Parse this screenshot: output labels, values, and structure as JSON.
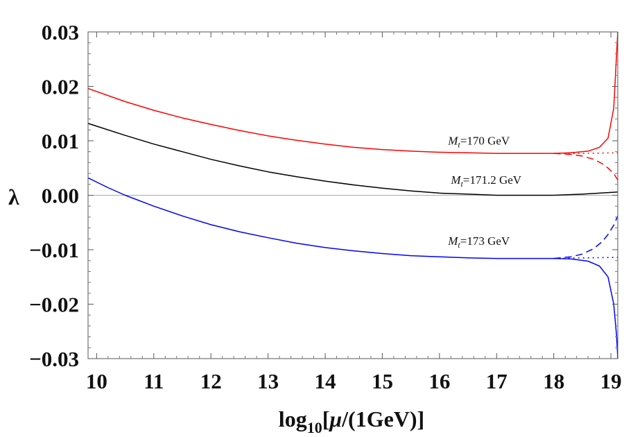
{
  "chart_data": {
    "type": "line",
    "title": "",
    "xlabel": {
      "prefix": "log",
      "sub": "10",
      "mu": "μ",
      "suffix": "/(1GeV)]"
    },
    "ylabel": "λ",
    "xlim": [
      9.85,
      19.12
    ],
    "ylim": [
      -0.03,
      0.03
    ],
    "x_ticks": [
      10,
      11,
      12,
      13,
      14,
      15,
      16,
      17,
      18,
      19
    ],
    "x_tick_labels": [
      "10",
      "11",
      "12",
      "13",
      "14",
      "15",
      "16",
      "17",
      "18",
      "19"
    ],
    "y_ticks": [
      0.03,
      0.02,
      0.01,
      0.0,
      -0.01,
      -0.02,
      -0.03
    ],
    "y_tick_labels": [
      "0.03",
      "0.02",
      "0.01",
      "0.00",
      "−0.01",
      "−0.02",
      "−0.03"
    ],
    "zero_line": true,
    "series": [
      {
        "name": "Mt=170 GeV",
        "color": "#ff0000",
        "style": "solid",
        "x": [
          9.85,
          10.5,
          11,
          11.5,
          12,
          12.5,
          13,
          13.5,
          14,
          14.5,
          15,
          15.5,
          16,
          16.5,
          17,
          17.5,
          18,
          18.3,
          18.6,
          18.8,
          18.95,
          19.05,
          19.12
        ],
        "values": [
          0.0196,
          0.0172,
          0.0156,
          0.0142,
          0.013,
          0.0119,
          0.0109,
          0.0101,
          0.0094,
          0.0088,
          0.0084,
          0.0081,
          0.0079,
          0.0078,
          0.0077,
          0.0077,
          0.0077,
          0.0078,
          0.0081,
          0.0088,
          0.0105,
          0.016,
          0.03
        ]
      },
      {
        "name": "Mt=170 GeV (dashed)",
        "color": "#ff0000",
        "style": "dashed",
        "x": [
          18.0,
          18.3,
          18.5,
          18.7,
          18.85,
          18.95,
          19.05,
          19.12
        ],
        "values": [
          0.0077,
          0.0075,
          0.0072,
          0.0066,
          0.0058,
          0.005,
          0.004,
          0.0028
        ]
      },
      {
        "name": "Mt=170 GeV (dotted)",
        "color": "#ff0000",
        "style": "dotted",
        "x": [
          18.0,
          18.5,
          19.12
        ],
        "values": [
          0.0077,
          0.0077,
          0.0078
        ]
      },
      {
        "name": "Mt=171.2 GeV",
        "color": "#000000",
        "style": "solid",
        "x": [
          9.85,
          10.5,
          11,
          11.5,
          12,
          12.5,
          13,
          13.5,
          14,
          14.5,
          15,
          15.5,
          16,
          16.5,
          17,
          17.5,
          18,
          18.5,
          19.12
        ],
        "values": [
          0.0132,
          0.011,
          0.0094,
          0.008,
          0.0066,
          0.0054,
          0.0043,
          0.0034,
          0.0026,
          0.0019,
          0.0013,
          0.0008,
          0.0004,
          0.0002,
          0.0,
          0.0,
          0.0,
          0.0002,
          0.0006
        ]
      },
      {
        "name": "Mt=173 GeV",
        "color": "#0000ff",
        "style": "solid",
        "x": [
          9.85,
          10.2,
          10.5,
          11,
          11.5,
          12,
          12.5,
          13,
          13.5,
          14,
          14.5,
          15,
          15.5,
          16,
          16.5,
          17,
          17.5,
          18,
          18.3,
          18.6,
          18.8,
          18.95,
          19.05,
          19.1,
          19.12
        ],
        "values": [
          0.0032,
          0.0014,
          0.0,
          -0.002,
          -0.0038,
          -0.0054,
          -0.0067,
          -0.0078,
          -0.0088,
          -0.0096,
          -0.0102,
          -0.0107,
          -0.0111,
          -0.0113,
          -0.0115,
          -0.0116,
          -0.0116,
          -0.0116,
          -0.0117,
          -0.0121,
          -0.013,
          -0.015,
          -0.02,
          -0.026,
          -0.03
        ]
      },
      {
        "name": "Mt=173 GeV (dashed)",
        "color": "#0000ff",
        "style": "dashed",
        "x": [
          18.0,
          18.3,
          18.5,
          18.7,
          18.85,
          18.95,
          19.05,
          19.12
        ],
        "values": [
          -0.0116,
          -0.0113,
          -0.0108,
          -0.0098,
          -0.0085,
          -0.0072,
          -0.0055,
          -0.0038
        ]
      },
      {
        "name": "Mt=173 GeV (dotted)",
        "color": "#0000ff",
        "style": "dotted",
        "x": [
          18.0,
          18.5,
          19.12
        ],
        "values": [
          -0.0116,
          -0.0115,
          -0.0114
        ]
      }
    ],
    "annotations": [
      {
        "var": "M",
        "sub": "t",
        "text": "=170 GeV",
        "x": 16.15,
        "y": 0.0093
      },
      {
        "var": "M",
        "sub": "t",
        "text": "=171.2 GeV",
        "x": 16.2,
        "y": 0.0021
      },
      {
        "var": "M",
        "sub": "t",
        "text": "=173 GeV",
        "x": 16.15,
        "y": -0.0091
      }
    ]
  }
}
